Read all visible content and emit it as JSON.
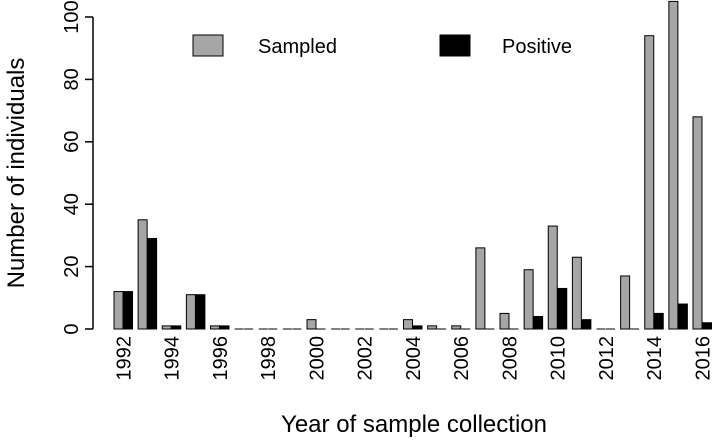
{
  "chart_data": {
    "type": "bar",
    "title": "",
    "xlabel": "Year of sample collection",
    "ylabel": "Number of individuals",
    "ylim": [
      0,
      105
    ],
    "yticks": [
      0,
      20,
      40,
      60,
      80,
      100
    ],
    "categories": [
      "1992",
      "1993",
      "1994",
      "1995",
      "1996",
      "1997",
      "1998",
      "1999",
      "2000",
      "2001",
      "2002",
      "2003",
      "2004",
      "2005",
      "2006",
      "2007",
      "2008",
      "2009",
      "2010",
      "2011",
      "2012",
      "2013",
      "2014",
      "2015",
      "2016"
    ],
    "xtick_labels": [
      "1992",
      "1994",
      "1996",
      "1998",
      "2000",
      "2002",
      "2004",
      "2006",
      "2008",
      "2010",
      "2012",
      "2014",
      "2016"
    ],
    "series": [
      {
        "name": "Sampled",
        "color": "#a6a6a6",
        "values": [
          12,
          35,
          1,
          11,
          1,
          0,
          0,
          0,
          3,
          0,
          0,
          0,
          3,
          1,
          1,
          26,
          5,
          19,
          33,
          23,
          0,
          17,
          94,
          105,
          68
        ]
      },
      {
        "name": "Positive",
        "color": "#000000",
        "values": [
          12,
          29,
          1,
          11,
          1,
          0,
          0,
          0,
          0,
          0,
          0,
          0,
          1,
          0,
          0,
          0,
          0,
          4,
          13,
          3,
          0,
          0,
          5,
          8,
          2
        ]
      }
    ],
    "legend_position": "top",
    "grid": false
  }
}
